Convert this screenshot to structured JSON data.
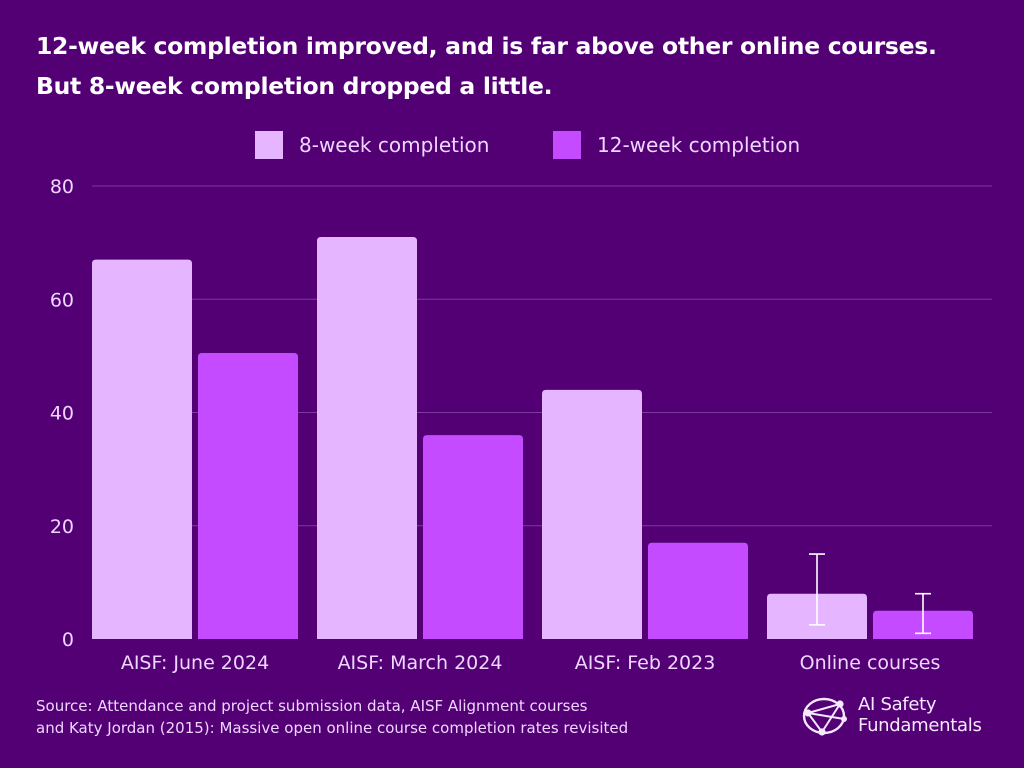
{
  "header": {
    "title_line1": "12-week completion improved, and is far above other online courses.",
    "title_line2": "But 8-week completion dropped a little."
  },
  "footer": {
    "source_line1": "Source: Attendance and project submission data, AISF Alignment courses",
    "source_line2": "and Katy Jordan (2015): Massive open online course completion rates revisited"
  },
  "logo": {
    "line1": "AI Safety",
    "line2": "Fundamentals"
  },
  "colors": {
    "background": "#530075",
    "series_8week": "#e6b5ff",
    "series_12week": "#c44bff",
    "grid": "#7a3aa0",
    "text": "#efd6ff"
  },
  "chart_data": {
    "type": "bar",
    "title": "12-week completion improved, and is far above other online courses. But 8-week completion dropped a little.",
    "xlabel": "",
    "ylabel": "",
    "categories": [
      "AISF: June 2024",
      "AISF: March 2024",
      "AISF: Feb 2023",
      "Online courses"
    ],
    "series": [
      {
        "name": "8-week completion",
        "color": "#e6b5ff",
        "values": [
          67,
          71,
          44,
          8
        ],
        "error_bars": [
          null,
          null,
          null,
          [
            2.5,
            15
          ]
        ]
      },
      {
        "name": "12-week completion",
        "color": "#c44bff",
        "values": [
          50.5,
          36,
          17,
          5
        ],
        "error_bars": [
          null,
          null,
          null,
          [
            1,
            8
          ]
        ]
      }
    ],
    "ylim": [
      0,
      80
    ],
    "yticks": [
      0,
      20,
      40,
      60,
      80
    ],
    "grid": true,
    "legend_position": "top-center"
  }
}
